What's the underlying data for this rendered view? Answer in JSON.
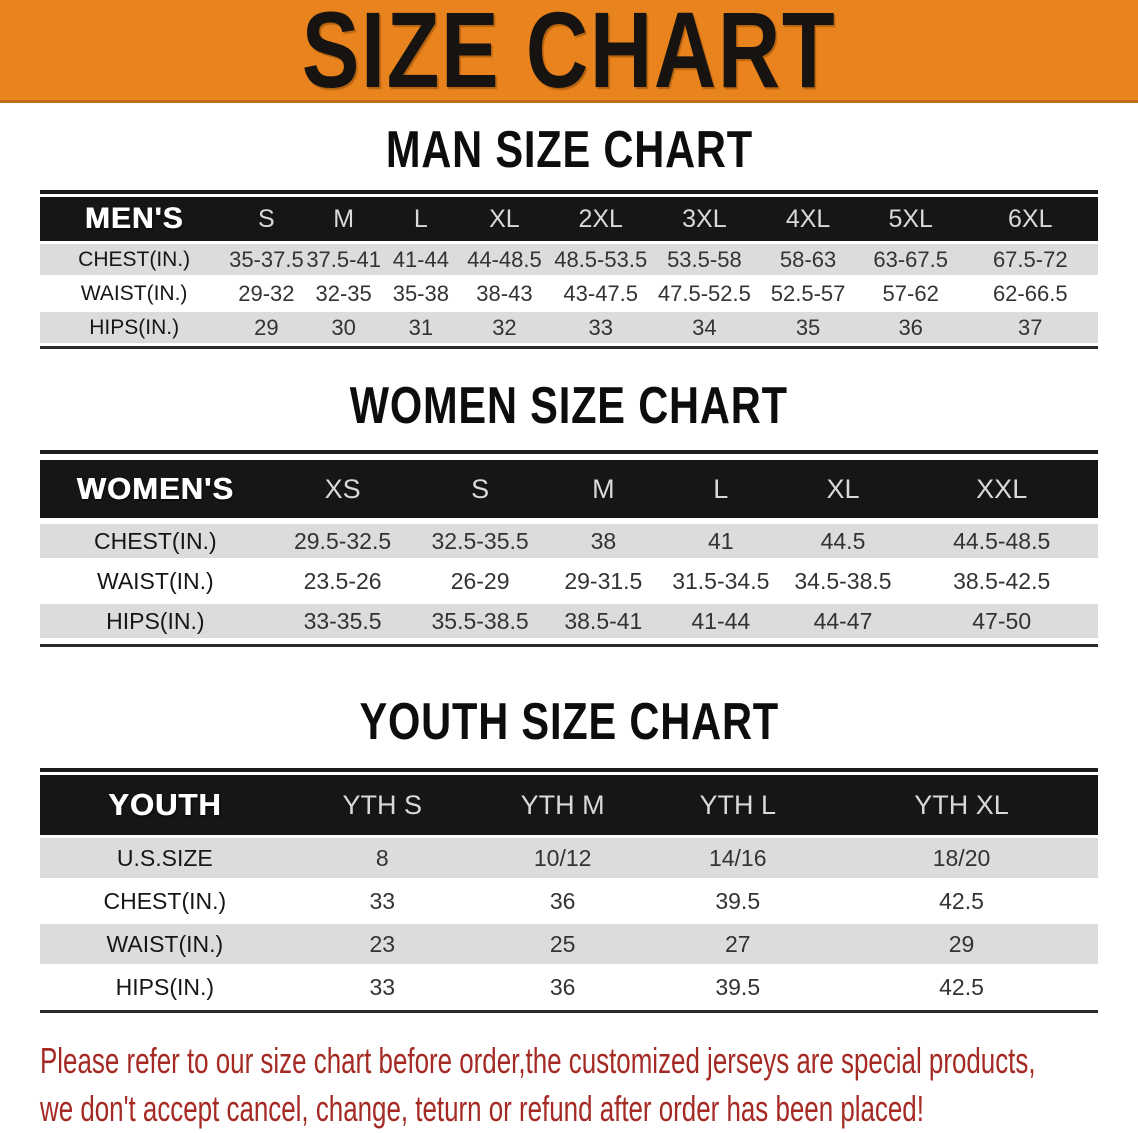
{
  "banner": {
    "title": "SIZE CHART",
    "bg_color": "#E8831E",
    "text_color": "#161311"
  },
  "sections": [
    {
      "id": "men",
      "title": "MAN SIZE CHART",
      "header_label": "MEN'S",
      "columns": [
        "S",
        "M",
        "L",
        "XL",
        "2XL",
        "3XL",
        "4XL",
        "5XL",
        "6XL"
      ],
      "rows": [
        {
          "label": "CHEST(IN.)",
          "values": [
            "35-37.5",
            "37.5-41",
            "41-44",
            "44-48.5",
            "48.5-53.5",
            "53.5-58",
            "58-63",
            "63-67.5",
            "67.5-72"
          ]
        },
        {
          "label": "WAIST(IN.)",
          "values": [
            "29-32",
            "32-35",
            "35-38",
            "38-43",
            "43-47.5",
            "47.5-52.5",
            "52.5-57",
            "57-62",
            "62-66.5"
          ]
        },
        {
          "label": "HIPS(IN.)",
          "values": [
            "29",
            "30",
            "31",
            "32",
            "33",
            "34",
            "35",
            "36",
            "37"
          ]
        }
      ]
    },
    {
      "id": "women",
      "title": "WOMEN SIZE CHART",
      "header_label": "WOMEN'S",
      "columns": [
        "XS",
        "S",
        "M",
        "L",
        "XL",
        "XXL"
      ],
      "rows": [
        {
          "label": "CHEST(IN.)",
          "values": [
            "29.5-32.5",
            "32.5-35.5",
            "38",
            "41",
            "44.5",
            "44.5-48.5"
          ]
        },
        {
          "label": "WAIST(IN.)",
          "values": [
            "23.5-26",
            "26-29",
            "29-31.5",
            "31.5-34.5",
            "34.5-38.5",
            "38.5-42.5"
          ]
        },
        {
          "label": "HIPS(IN.)",
          "values": [
            "33-35.5",
            "35.5-38.5",
            "38.5-41",
            "41-44",
            "44-47",
            "47-50"
          ]
        }
      ]
    },
    {
      "id": "youth",
      "title": "YOUTH SIZE CHART",
      "header_label": "YOUTH",
      "columns": [
        "YTH S",
        "YTH M",
        "YTH L",
        "YTH XL"
      ],
      "rows": [
        {
          "label": "U.S.SIZE",
          "values": [
            "8",
            "10/12",
            "14/16",
            "18/20"
          ]
        },
        {
          "label": "CHEST(IN.)",
          "values": [
            "33",
            "36",
            "39.5",
            "42.5"
          ]
        },
        {
          "label": "WAIST(IN.)",
          "values": [
            "23",
            "25",
            "27",
            "29"
          ]
        },
        {
          "label": "HIPS(IN.)",
          "values": [
            "33",
            "36",
            "39.5",
            "42.5"
          ]
        }
      ]
    }
  ],
  "footer": {
    "line1": "Please refer to our size chart before order,the customized jerseys are special products,",
    "line2": "we don't accept cancel, change, teturn or refund after order has been placed!",
    "text_color": "#A52A24"
  }
}
